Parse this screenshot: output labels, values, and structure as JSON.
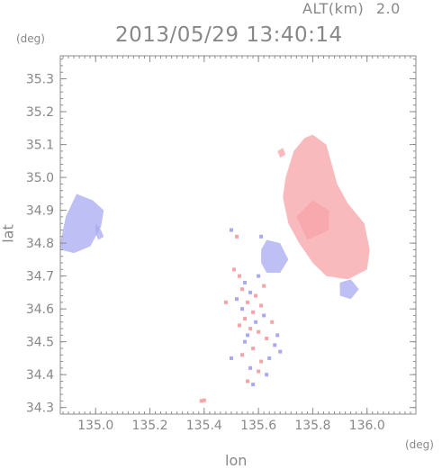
{
  "header": {
    "alt_label": "ALT(km)",
    "alt_value": "2.0",
    "timestamp": "2013/05/29 13:40:14"
  },
  "axes": {
    "lat_unit": "(deg)",
    "lon_unit": "(deg)",
    "xlabel": "lon",
    "ylabel": "lat"
  },
  "chart_data": {
    "type": "heatmap",
    "xlabel": "lon",
    "ylabel": "lat",
    "xlim": [
      134.87,
      136.18
    ],
    "ylim": [
      34.28,
      35.37
    ],
    "x_ticks": [
      "135.0",
      "135.2",
      "135.4",
      "135.6",
      "135.8",
      "136.0"
    ],
    "x_tick_values": [
      135.0,
      135.2,
      135.4,
      135.6,
      135.8,
      136.0
    ],
    "y_ticks": [
      "34.3",
      "34.4",
      "34.5",
      "34.6",
      "34.7",
      "34.8",
      "34.9",
      "35.0",
      "35.1",
      "35.2",
      "35.3"
    ],
    "y_tick_values": [
      34.3,
      34.4,
      34.5,
      34.6,
      34.7,
      34.8,
      34.9,
      35.0,
      35.1,
      35.2,
      35.3
    ],
    "colors": {
      "positive": "#f7a3a8",
      "negative": "#a8a9f2",
      "axis": "#8c8c8c"
    },
    "regions": [
      {
        "sign": "negative",
        "polygon": [
          [
            134.87,
            34.8
          ],
          [
            134.89,
            34.88
          ],
          [
            134.93,
            34.95
          ],
          [
            134.99,
            34.93
          ],
          [
            135.03,
            34.9
          ],
          [
            135.02,
            34.85
          ],
          [
            134.98,
            34.79
          ],
          [
            134.92,
            34.77
          ],
          [
            134.87,
            34.78
          ]
        ]
      },
      {
        "sign": "negative",
        "polygon": [
          [
            135.0,
            34.86
          ],
          [
            135.02,
            34.84
          ],
          [
            135.03,
            34.82
          ],
          [
            135.01,
            34.81
          ],
          [
            135.0,
            34.83
          ]
        ]
      },
      {
        "sign": "positive",
        "polygon": [
          [
            135.7,
            35.0
          ],
          [
            135.73,
            35.08
          ],
          [
            135.77,
            35.12
          ],
          [
            135.8,
            35.13
          ],
          [
            135.85,
            35.1
          ],
          [
            135.89,
            34.98
          ],
          [
            135.93,
            34.92
          ],
          [
            135.99,
            34.86
          ],
          [
            136.01,
            34.78
          ],
          [
            136.0,
            34.72
          ],
          [
            135.93,
            34.69
          ],
          [
            135.85,
            34.7
          ],
          [
            135.8,
            34.74
          ],
          [
            135.75,
            34.8
          ],
          [
            135.71,
            34.86
          ],
          [
            135.69,
            34.94
          ]
        ]
      },
      {
        "sign": "positive",
        "polygon": [
          [
            135.74,
            34.88
          ],
          [
            135.8,
            34.93
          ],
          [
            135.86,
            34.9
          ],
          [
            135.86,
            34.84
          ],
          [
            135.78,
            34.81
          ]
        ]
      },
      {
        "sign": "negative",
        "polygon": [
          [
            135.61,
            34.78
          ],
          [
            135.63,
            34.81
          ],
          [
            135.68,
            34.8
          ],
          [
            135.71,
            34.75
          ],
          [
            135.68,
            34.71
          ],
          [
            135.63,
            34.71
          ],
          [
            135.61,
            34.74
          ]
        ]
      },
      {
        "sign": "negative",
        "polygon": [
          [
            135.9,
            34.68
          ],
          [
            135.94,
            34.69
          ],
          [
            135.97,
            34.66
          ],
          [
            135.94,
            34.63
          ],
          [
            135.9,
            34.64
          ]
        ]
      },
      {
        "sign": "positive",
        "polygon": [
          [
            135.67,
            35.08
          ],
          [
            135.69,
            35.09
          ],
          [
            135.7,
            35.07
          ],
          [
            135.68,
            35.06
          ]
        ]
      }
    ],
    "points": [
      {
        "sign": "positive",
        "lon": 135.39,
        "lat": 34.32
      },
      {
        "sign": "positive",
        "lon": 135.4,
        "lat": 34.322
      },
      {
        "sign": "positive",
        "lon": 135.51,
        "lat": 34.72
      },
      {
        "sign": "positive",
        "lon": 135.53,
        "lat": 34.7
      },
      {
        "sign": "negative",
        "lon": 135.55,
        "lat": 34.68
      },
      {
        "sign": "positive",
        "lon": 135.54,
        "lat": 34.66
      },
      {
        "sign": "negative",
        "lon": 135.57,
        "lat": 34.65
      },
      {
        "sign": "positive",
        "lon": 135.59,
        "lat": 34.64
      },
      {
        "sign": "negative",
        "lon": 135.52,
        "lat": 34.63
      },
      {
        "sign": "positive",
        "lon": 135.56,
        "lat": 34.62
      },
      {
        "sign": "positive",
        "lon": 135.61,
        "lat": 34.61
      },
      {
        "sign": "negative",
        "lon": 135.54,
        "lat": 34.6
      },
      {
        "sign": "positive",
        "lon": 135.58,
        "lat": 34.59
      },
      {
        "sign": "negative",
        "lon": 135.62,
        "lat": 34.58
      },
      {
        "sign": "positive",
        "lon": 135.55,
        "lat": 34.57
      },
      {
        "sign": "negative",
        "lon": 135.59,
        "lat": 34.56
      },
      {
        "sign": "positive",
        "lon": 135.53,
        "lat": 34.55
      },
      {
        "sign": "positive",
        "lon": 135.6,
        "lat": 34.53
      },
      {
        "sign": "negative",
        "lon": 135.56,
        "lat": 34.52
      },
      {
        "sign": "positive",
        "lon": 135.63,
        "lat": 34.51
      },
      {
        "sign": "negative",
        "lon": 135.66,
        "lat": 34.49
      },
      {
        "sign": "positive",
        "lon": 135.58,
        "lat": 34.48
      },
      {
        "sign": "negative",
        "lon": 135.68,
        "lat": 34.47
      },
      {
        "sign": "positive",
        "lon": 135.54,
        "lat": 34.46
      },
      {
        "sign": "negative",
        "lon": 135.64,
        "lat": 34.45
      },
      {
        "sign": "positive",
        "lon": 135.61,
        "lat": 34.44
      },
      {
        "sign": "negative",
        "lon": 135.57,
        "lat": 34.42
      },
      {
        "sign": "positive",
        "lon": 135.6,
        "lat": 34.41
      },
      {
        "sign": "negative",
        "lon": 135.63,
        "lat": 34.4
      },
      {
        "sign": "positive",
        "lon": 135.56,
        "lat": 34.38
      },
      {
        "sign": "negative",
        "lon": 135.58,
        "lat": 34.37
      },
      {
        "sign": "negative",
        "lon": 135.5,
        "lat": 34.84
      },
      {
        "sign": "positive",
        "lon": 135.52,
        "lat": 34.82
      },
      {
        "sign": "negative",
        "lon": 135.61,
        "lat": 34.82
      },
      {
        "sign": "positive",
        "lon": 135.48,
        "lat": 34.62
      },
      {
        "sign": "negative",
        "lon": 135.5,
        "lat": 34.45
      },
      {
        "sign": "positive",
        "lon": 135.65,
        "lat": 34.56
      },
      {
        "sign": "negative",
        "lon": 135.67,
        "lat": 34.52
      },
      {
        "sign": "positive",
        "lon": 135.62,
        "lat": 34.67
      },
      {
        "sign": "negative",
        "lon": 135.6,
        "lat": 34.7
      },
      {
        "sign": "positive",
        "lon": 135.57,
        "lat": 34.54
      },
      {
        "sign": "negative",
        "lon": 135.55,
        "lat": 34.5
      }
    ]
  }
}
